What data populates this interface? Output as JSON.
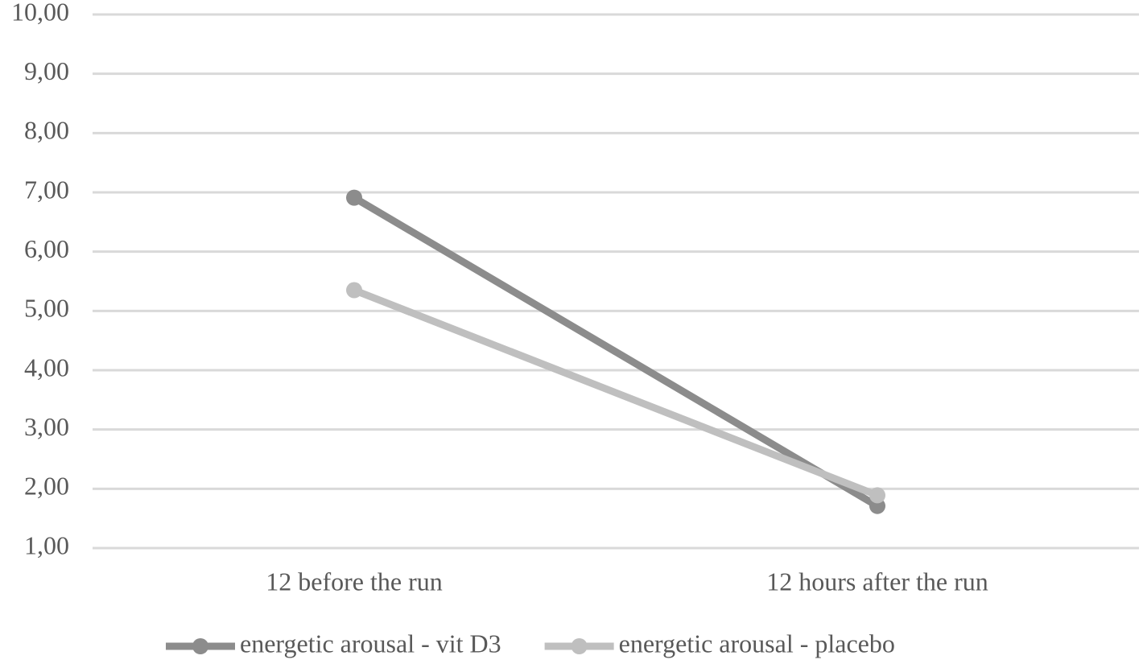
{
  "chart_data": {
    "type": "line",
    "categories": [
      "12 before the run",
      "12 hours after the run"
    ],
    "series": [
      {
        "name": "energetic arousal - vit D3",
        "color": "#8c8c8c",
        "values": [
          6.91,
          1.71
        ]
      },
      {
        "name": "energetic arousal - placebo",
        "color": "#bfbfbf",
        "values": [
          5.35,
          1.89
        ]
      }
    ],
    "ylim": [
      1,
      10
    ],
    "yticks": [
      {
        "value": 1,
        "label": "1,00"
      },
      {
        "value": 2,
        "label": "2,00"
      },
      {
        "value": 3,
        "label": "3,00"
      },
      {
        "value": 4,
        "label": "4,00"
      },
      {
        "value": 5,
        "label": "5,00"
      },
      {
        "value": 6,
        "label": "6,00"
      },
      {
        "value": 7,
        "label": "7,00"
      },
      {
        "value": 8,
        "label": "8,00"
      },
      {
        "value": 9,
        "label": "9,00"
      },
      {
        "value": 10,
        "label": "10,00"
      }
    ],
    "grid": true,
    "legend": "bottom"
  }
}
